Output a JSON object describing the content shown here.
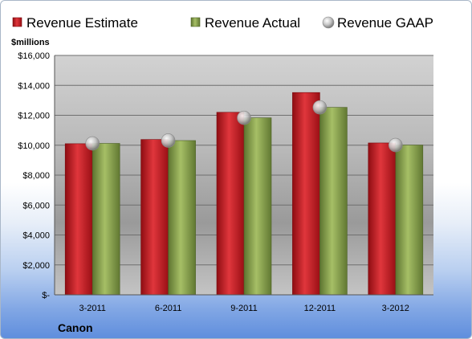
{
  "chart_data": {
    "type": "bar",
    "company": "Canon",
    "units_label": "$millions",
    "categories": [
      "3-2011",
      "6-2011",
      "9-2011",
      "12-2011",
      "3-2012"
    ],
    "series": [
      {
        "name": "Revenue Estimate",
        "kind": "bar",
        "color": "#c0141c",
        "values": [
          10100,
          10380,
          12200,
          13520,
          10150
        ]
      },
      {
        "name": "Revenue Actual",
        "kind": "bar",
        "color": "#7f9a42",
        "values": [
          10120,
          10310,
          11830,
          12530,
          10010
        ]
      },
      {
        "name": "Revenue GAAP",
        "kind": "marker",
        "color": "#c8c8c8",
        "values": [
          10120,
          10310,
          11830,
          12530,
          10010
        ]
      }
    ],
    "ylim": [
      0,
      16000
    ],
    "ytick_values": [
      0,
      2000,
      4000,
      6000,
      8000,
      10000,
      12000,
      14000,
      16000
    ],
    "ytick_labels": [
      "$-",
      "$2,000",
      "$4,000",
      "$6,000",
      "$8,000",
      "$10,000",
      "$12,000",
      "$14,000",
      "$16,000"
    ],
    "grid": true,
    "legend_position": "top"
  }
}
